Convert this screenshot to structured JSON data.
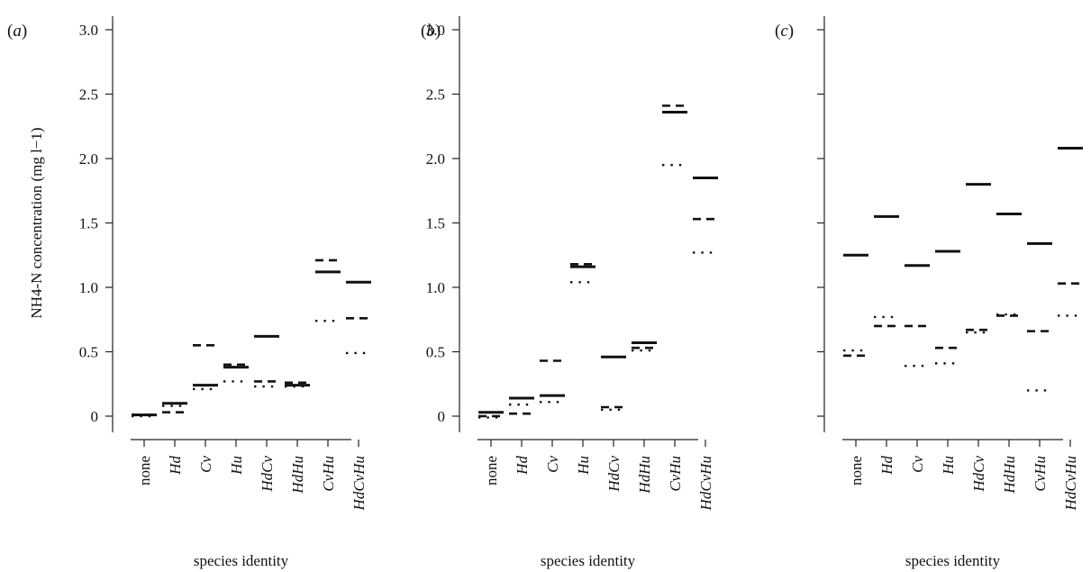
{
  "chart_data": [
    {
      "type": "scatter",
      "panel": "a",
      "xlabel": "species identity",
      "ylabel": "NH4-N concentration (mg l−1)",
      "ylim": [
        0,
        3.0
      ],
      "yticks": [
        "0",
        "0.5",
        "1.0",
        "1.5",
        "2.0",
        "2.5",
        "3.0"
      ],
      "categories": [
        "none",
        "Hd",
        "Cv",
        "Hu",
        "HdCv",
        "HdHu",
        "CvHu",
        "HdCvHu"
      ],
      "series": [
        {
          "style": "solid",
          "values": [
            0.01,
            0.1,
            0.24,
            0.38,
            0.62,
            0.24,
            1.12,
            1.04
          ]
        },
        {
          "style": "dashed",
          "values": [
            0.01,
            0.03,
            0.55,
            0.4,
            0.27,
            0.26,
            1.21,
            0.76
          ]
        },
        {
          "style": "dotted",
          "values": [
            0.0,
            0.08,
            0.21,
            0.27,
            0.23,
            0.23,
            0.74,
            0.49
          ]
        }
      ]
    },
    {
      "type": "scatter",
      "panel": "b",
      "xlabel": "species identity",
      "ylim": [
        0,
        3.0
      ],
      "yticks": [
        "0",
        "0.5",
        "1.0",
        "1.5",
        "2.0",
        "2.5",
        "3.0"
      ],
      "categories": [
        "none",
        "Hd",
        "Cv",
        "Hu",
        "HdCv",
        "HdHu",
        "CvHu",
        "HdCvHu"
      ],
      "series": [
        {
          "style": "solid",
          "values": [
            0.03,
            0.14,
            0.16,
            1.16,
            0.46,
            0.57,
            2.36,
            1.85
          ]
        },
        {
          "style": "dashed",
          "values": [
            0.0,
            0.02,
            0.43,
            1.18,
            0.07,
            0.53,
            2.41,
            1.53
          ]
        },
        {
          "style": "dotted",
          "values": [
            -0.01,
            0.09,
            0.11,
            1.04,
            0.05,
            0.51,
            1.95,
            1.27
          ]
        }
      ]
    },
    {
      "type": "scatter",
      "panel": "c",
      "xlabel": "species identity",
      "ylim": [
        0,
        3.0
      ],
      "yticks": [
        "",
        "",
        "",
        "",
        "",
        "",
        ""
      ],
      "categories": [
        "none",
        "Hd",
        "Cv",
        "Hu",
        "HdCv",
        "HdHu",
        "CvHu",
        "HdCvHu"
      ],
      "series": [
        {
          "style": "solid",
          "values": [
            1.25,
            1.55,
            1.17,
            1.28,
            1.8,
            1.57,
            1.34,
            2.08
          ]
        },
        {
          "style": "dashed",
          "values": [
            0.47,
            0.7,
            0.7,
            0.53,
            0.67,
            0.78,
            0.66,
            1.03
          ]
        },
        {
          "style": "dotted",
          "values": [
            0.51,
            0.77,
            0.39,
            0.41,
            0.65,
            0.79,
            0.2,
            0.78
          ]
        }
      ]
    }
  ]
}
